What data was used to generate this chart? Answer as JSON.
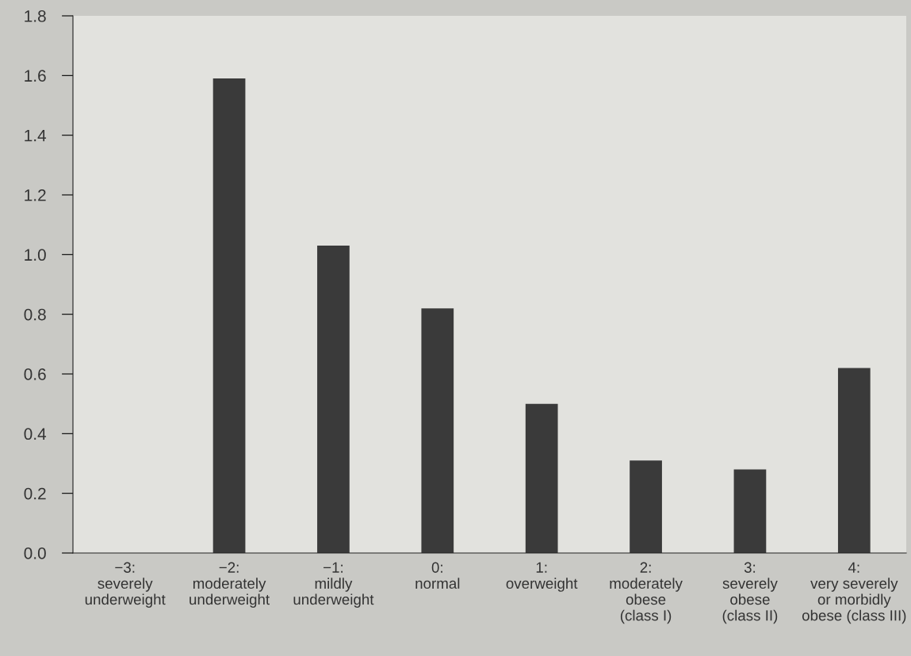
{
  "chart_data": {
    "type": "bar",
    "categories": [
      "−3:\nseverely\nunderweight",
      "−2:\nmoderately\nunderweight",
      "−1:\nmildly\nunderweight",
      "0:\nnormal",
      "1:\noverweight",
      "2:\nmoderately\nobese\n(class I)",
      "3:\nseverely\nobese\n(class II)",
      "4:\nvery severely\nor morbidly\nobese (class III)"
    ],
    "values": [
      0,
      1.59,
      1.03,
      0.82,
      0.5,
      0.31,
      0.28,
      0.62
    ],
    "color": "#3a3a3a",
    "ylim": [
      0,
      1.8
    ],
    "yticks": [
      {
        "value": 0,
        "label": "0.0"
      },
      {
        "value": 0.2,
        "label": "0.2"
      },
      {
        "value": 0.4,
        "label": "0.4"
      },
      {
        "value": 0.6,
        "label": "0.6"
      },
      {
        "value": 0.8,
        "label": "0.8"
      },
      {
        "value": 1.0,
        "label": "1.0"
      },
      {
        "value": 1.2,
        "label": "1.2"
      },
      {
        "value": 1.4,
        "label": "1.4"
      },
      {
        "value": 1.6,
        "label": "1.6"
      },
      {
        "value": 1.8,
        "label": "1.8"
      }
    ],
    "grid": false
  }
}
